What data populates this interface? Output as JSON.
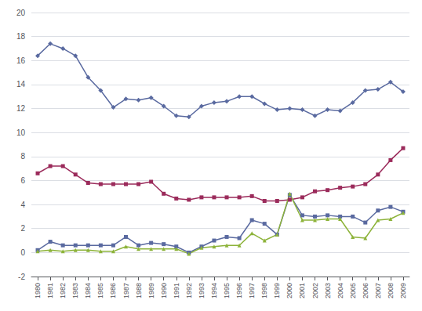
{
  "chart_data": {
    "type": "line",
    "x": [
      1980,
      1981,
      1982,
      1983,
      1984,
      1985,
      1986,
      1987,
      1988,
      1989,
      1990,
      1991,
      1992,
      1993,
      1994,
      1995,
      1996,
      1997,
      1998,
      1999,
      2000,
      2001,
      2002,
      2003,
      2004,
      2005,
      2006,
      2007,
      2008,
      2009
    ],
    "xlim": [
      1979.5,
      2009.5
    ],
    "xticks": [
      1980,
      1981,
      1982,
      1983,
      1984,
      1985,
      1986,
      1987,
      1988,
      1989,
      1990,
      1991,
      1992,
      1993,
      1994,
      1995,
      1996,
      1997,
      1998,
      1999,
      2000,
      2001,
      2002,
      2003,
      2004,
      2005,
      2006,
      2007,
      2008,
      2009
    ],
    "ylim": [
      -2,
      20
    ],
    "yticks": [
      -2,
      0,
      2,
      4,
      6,
      8,
      10,
      12,
      14,
      16,
      18,
      20
    ],
    "grid": true,
    "series": [
      {
        "color": "#5A6AA0",
        "marker": "diamond",
        "values": [
          16.4,
          17.4,
          17.0,
          16.4,
          14.6,
          13.5,
          12.1,
          12.8,
          12.7,
          12.9,
          12.2,
          11.4,
          11.3,
          12.2,
          12.5,
          12.6,
          13.0,
          13.0,
          12.4,
          11.9,
          12.0,
          11.9,
          11.4,
          11.9,
          11.8,
          12.5,
          13.5,
          13.6,
          14.2,
          13.4
        ]
      },
      {
        "color": "#9B2B5B",
        "marker": "square",
        "values": [
          6.6,
          7.2,
          7.2,
          6.5,
          5.8,
          5.7,
          5.7,
          5.7,
          5.7,
          5.9,
          4.9,
          4.5,
          4.4,
          4.6,
          4.6,
          4.6,
          4.6,
          4.7,
          4.3,
          4.3,
          4.4,
          4.6,
          5.1,
          5.2,
          5.4,
          5.5,
          5.7,
          6.5,
          7.7,
          8.7
        ]
      },
      {
        "color": "#5A6AA0",
        "marker": "square",
        "values": [
          0.2,
          0.9,
          0.6,
          0.6,
          0.6,
          0.6,
          0.6,
          1.3,
          0.6,
          0.8,
          0.7,
          0.5,
          0.0,
          0.5,
          1.0,
          1.3,
          1.2,
          2.7,
          2.4,
          1.5,
          4.8,
          3.1,
          3.0,
          3.1,
          3.0,
          3.0,
          2.5,
          3.5,
          3.8,
          3.4
        ]
      },
      {
        "color": "#8DB33A",
        "marker": "triangle",
        "values": [
          0.1,
          0.2,
          0.1,
          0.2,
          0.2,
          0.1,
          0.1,
          0.5,
          0.3,
          0.3,
          0.3,
          0.3,
          -0.1,
          0.4,
          0.5,
          0.6,
          0.6,
          1.6,
          1.0,
          1.5,
          4.9,
          2.7,
          2.7,
          2.8,
          2.8,
          1.3,
          1.2,
          2.7,
          2.8,
          3.3
        ]
      }
    ]
  }
}
